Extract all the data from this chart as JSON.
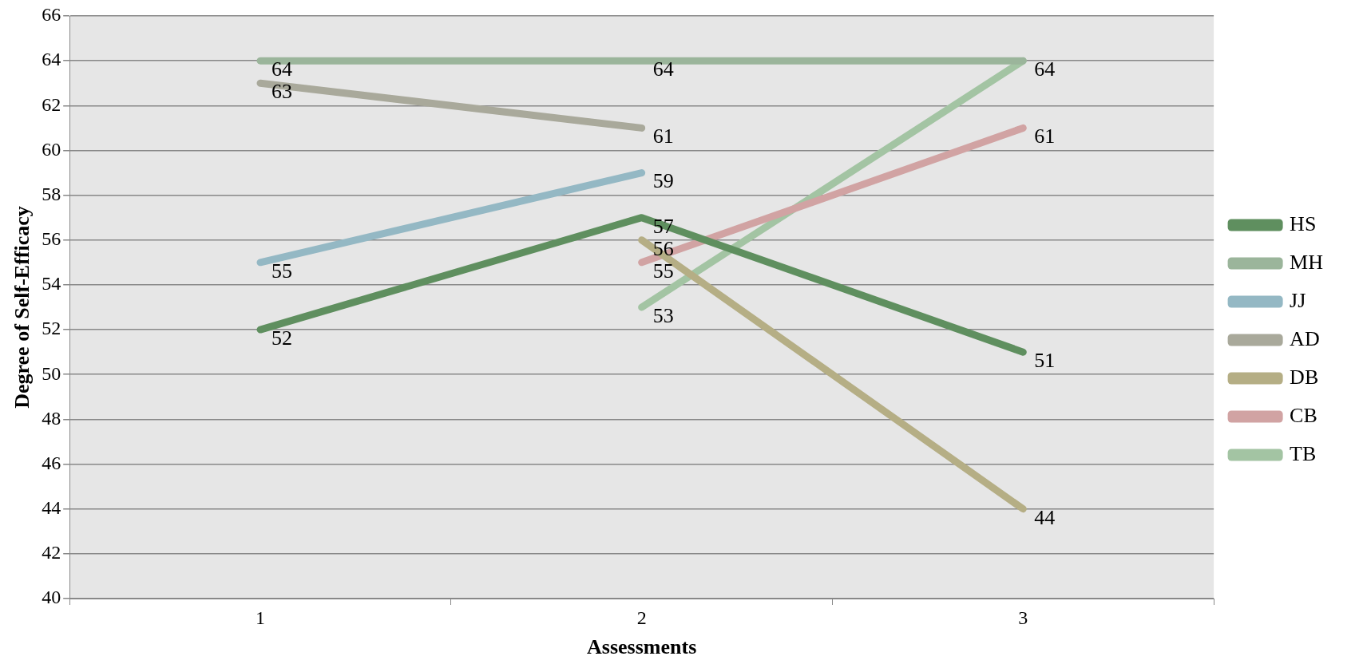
{
  "chart_data": {
    "type": "line",
    "xlabel": "Assessments",
    "ylabel": "Degree of Self-Efficacy",
    "categories": [
      "1",
      "2",
      "3"
    ],
    "series": [
      {
        "name": "HS",
        "color": "#5f8f5f",
        "values": [
          52,
          57,
          51
        ],
        "value_labels": [
          "52",
          "57",
          "51"
        ]
      },
      {
        "name": "MH",
        "color": "#9bb59b",
        "values": [
          64,
          64,
          64
        ],
        "value_labels": [
          "64",
          "64",
          null
        ]
      },
      {
        "name": "JJ",
        "color": "#94b8c4",
        "values": [
          55,
          59,
          null
        ],
        "value_labels": [
          "55",
          "59",
          null
        ]
      },
      {
        "name": "AD",
        "color": "#a9a99b",
        "values": [
          63,
          61,
          null
        ],
        "value_labels": [
          "63",
          "61",
          null
        ]
      },
      {
        "name": "DB",
        "color": "#b5ae85",
        "values": [
          null,
          56,
          44
        ],
        "value_labels": [
          null,
          "56",
          "44"
        ]
      },
      {
        "name": "CB",
        "color": "#d1a3a3",
        "values": [
          null,
          55,
          61
        ],
        "value_labels": [
          null,
          "55",
          "61"
        ]
      },
      {
        "name": "TB",
        "color": "#a3c4a3",
        "values": [
          null,
          53,
          64
        ],
        "value_labels": [
          null,
          "53",
          "64"
        ]
      }
    ],
    "ylim": [
      40,
      66
    ],
    "yticks": [
      40,
      42,
      44,
      46,
      48,
      50,
      52,
      54,
      56,
      58,
      60,
      62,
      64,
      66
    ],
    "grid": "y",
    "legend": "right",
    "marker": "none",
    "line_style": "solid"
  }
}
